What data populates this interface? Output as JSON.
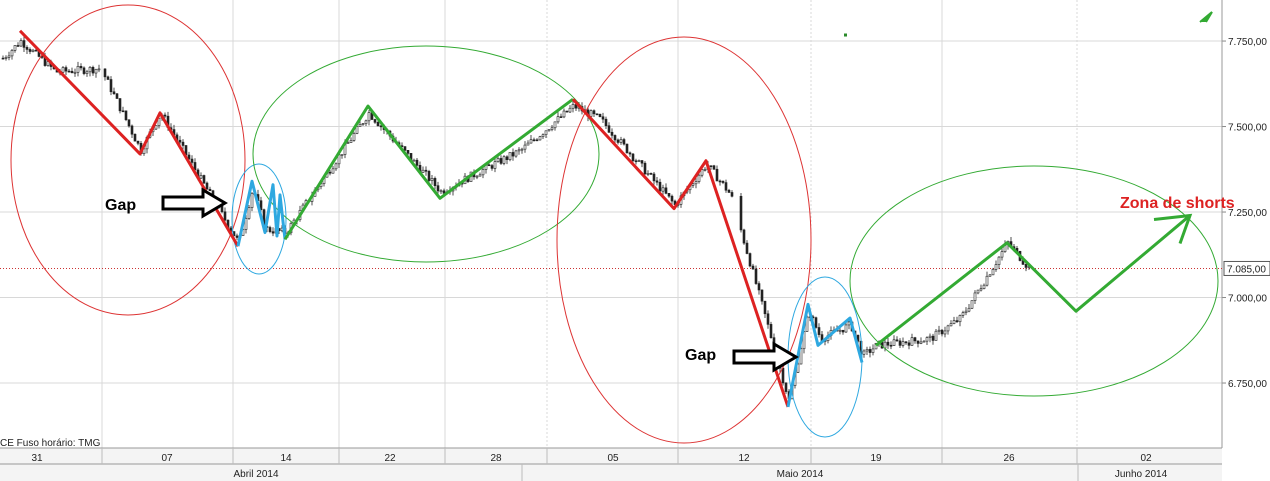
{
  "chart_data": {
    "type": "candlestick",
    "title": "",
    "xlabel": "",
    "ylabel": "",
    "ylim": [
      6560,
      7870
    ],
    "y_ticks": [
      {
        "v": 7750,
        "label": "7.750,00"
      },
      {
        "v": 7500,
        "label": "7.500,00"
      },
      {
        "v": 7250,
        "label": "7.250,00"
      },
      {
        "v": 7000,
        "label": "7.000,00"
      },
      {
        "v": 6750,
        "label": "6.750,00"
      }
    ],
    "current_price": {
      "v": 7085,
      "label": "7.085,00"
    },
    "day_labels": [
      "31",
      "07",
      "14",
      "22",
      "28",
      "05",
      "12",
      "19",
      "26",
      "02"
    ],
    "month_labels": [
      "Abril 2014",
      "Maio 2014",
      "Junho 2014"
    ],
    "footer_text": "CE   Fuso horário: TMG",
    "series": [
      {
        "color": "#dd2222",
        "points": [
          [
            "Mar 28",
            7780
          ],
          [
            "Apr 03",
            7420
          ],
          [
            "Apr 04",
            7540
          ],
          [
            "Apr 11",
            7150
          ]
        ]
      },
      {
        "color": "#2ea8e0",
        "points": [
          [
            "Apr 11",
            7150
          ],
          [
            "Apr 11 ",
            7340
          ],
          [
            "Apr 14",
            7190
          ],
          [
            "Apr 14 ",
            7330
          ],
          [
            "Apr 15",
            7180
          ],
          [
            "Apr 15 ",
            7300
          ],
          [
            "Apr 16",
            7170
          ]
        ]
      },
      {
        "color": "#33aa33",
        "points": [
          [
            "Apr 16",
            7170
          ],
          [
            "Apr 21",
            7560
          ],
          [
            "Apr 25",
            7290
          ],
          [
            "May 02",
            7580
          ]
        ]
      },
      {
        "color": "#dd2222",
        "points": [
          [
            "May 02",
            7580
          ],
          [
            "May 08",
            7260
          ],
          [
            "May 09",
            7400
          ],
          [
            "May 14",
            6680
          ]
        ]
      },
      {
        "color": "#2ea8e0",
        "points": [
          [
            "May 14",
            6680
          ],
          [
            "May 15",
            6980
          ],
          [
            "May 16",
            6860
          ],
          [
            "May 17",
            6940
          ],
          [
            "May 18",
            6810
          ]
        ]
      },
      {
        "color": "#33aa33",
        "points": [
          [
            "May 19",
            6860
          ],
          [
            "May 26",
            7160
          ],
          [
            "May 29",
            6960
          ],
          [
            "Jun 03",
            7240
          ]
        ]
      }
    ]
  },
  "annotations": {
    "gap1": "Gap",
    "gap2": "Gap",
    "zona": "Zona de shorts"
  }
}
